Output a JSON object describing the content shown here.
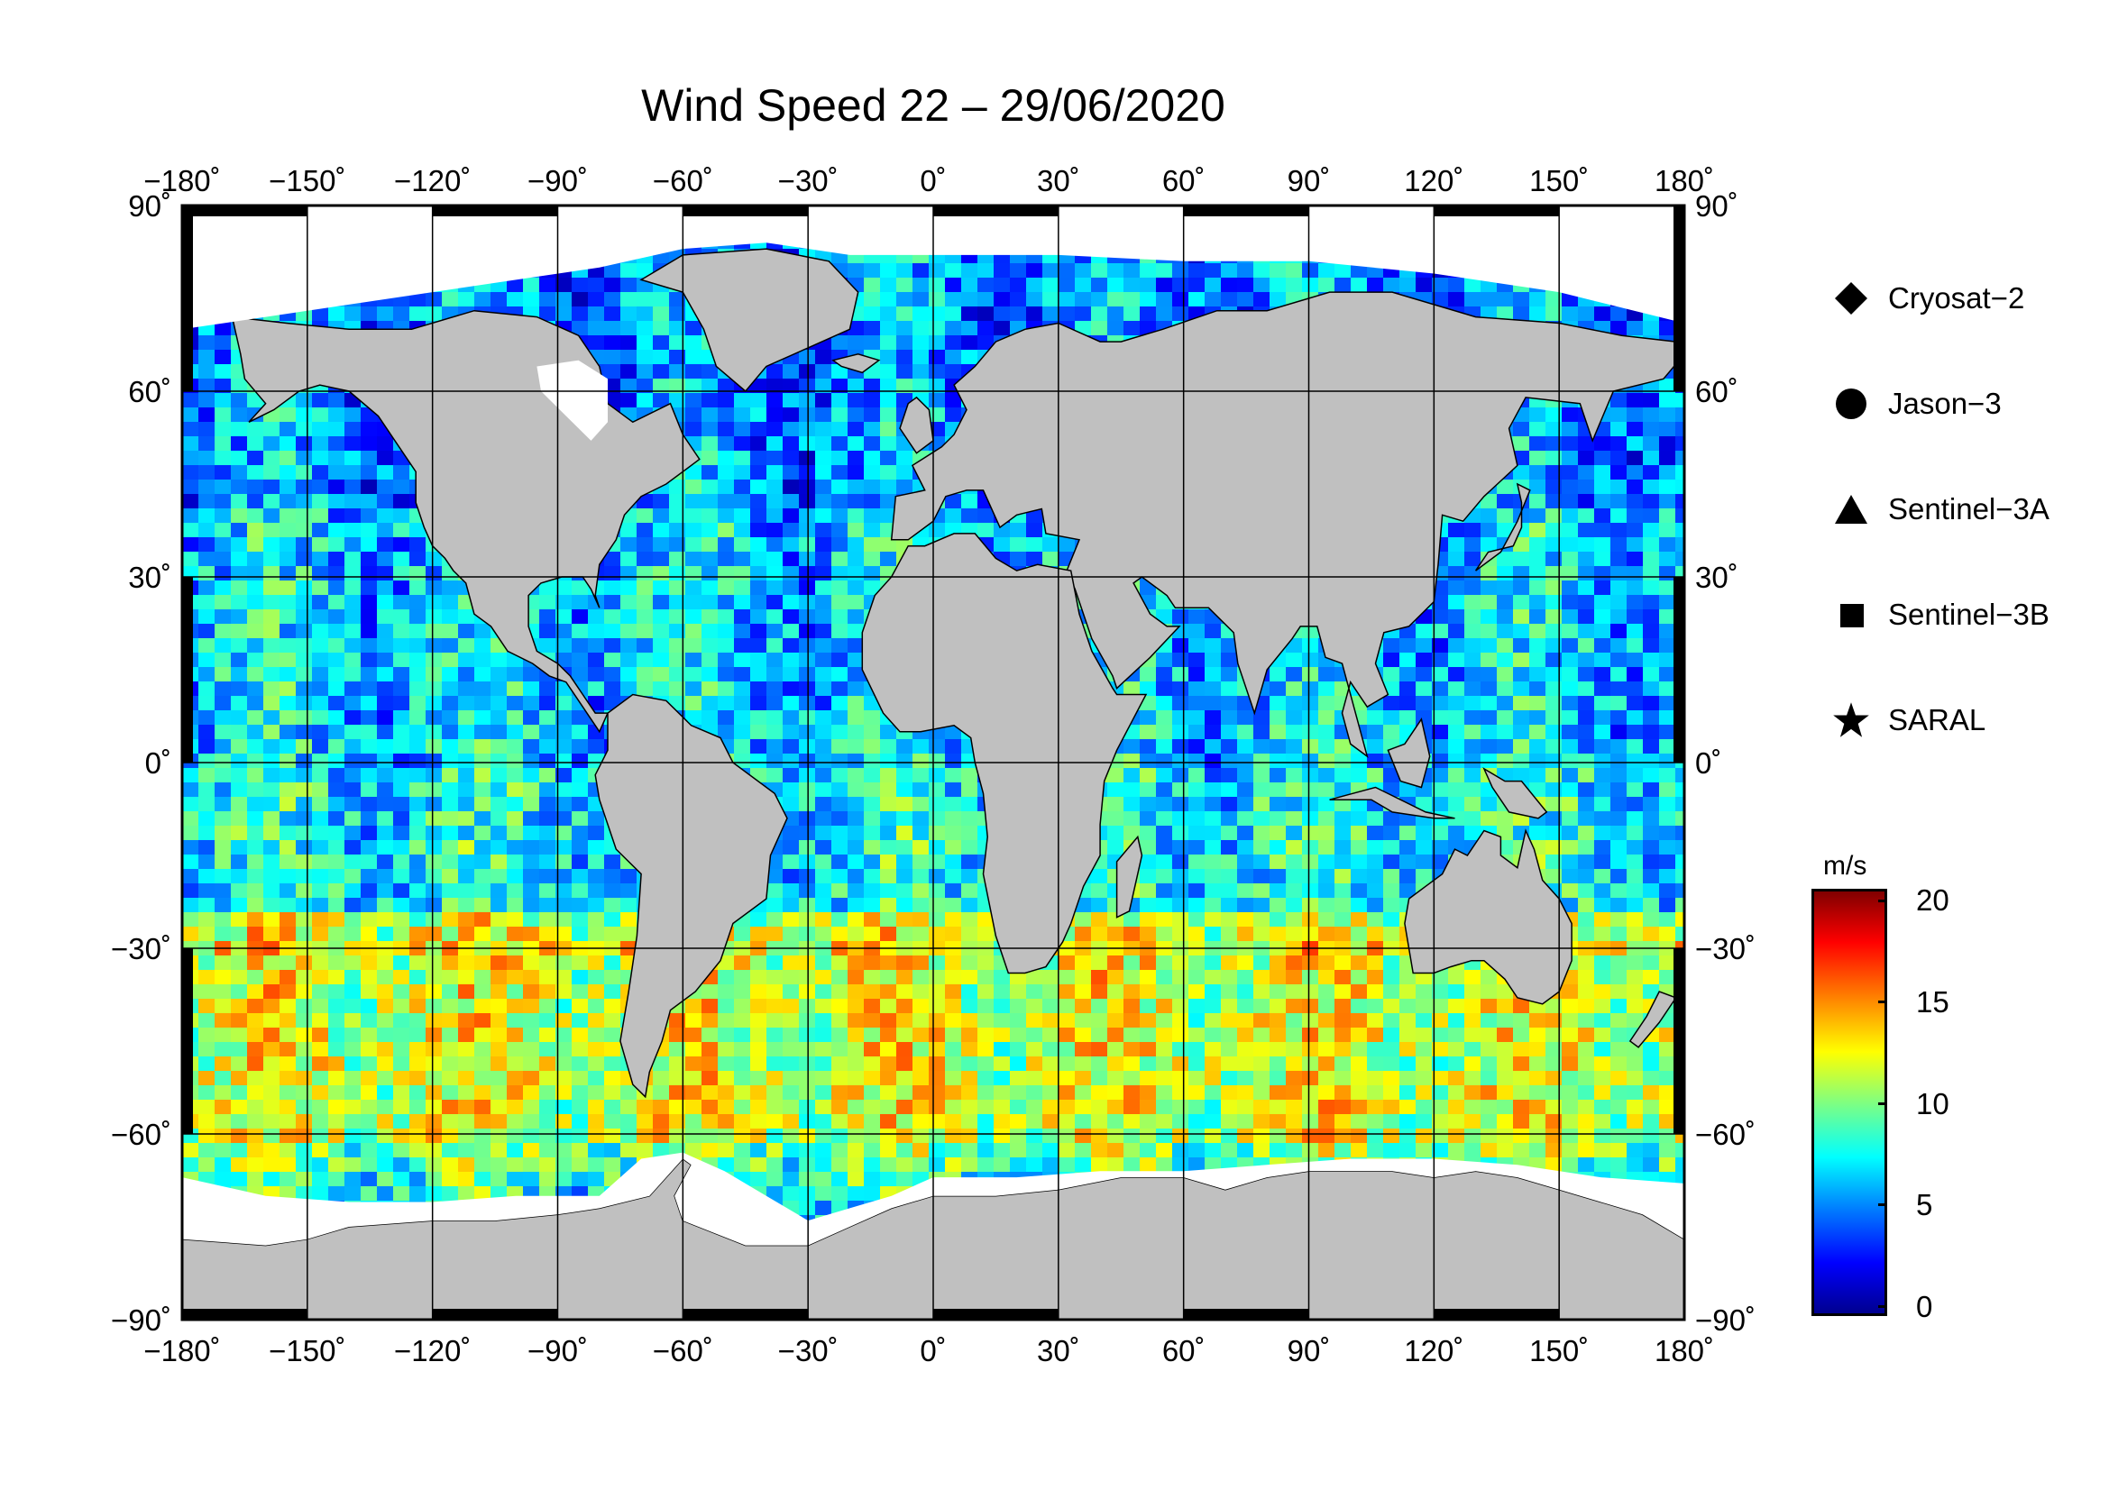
{
  "title": "Wind Speed 22 – 29/06/2020",
  "map": {
    "lon_ticks": [
      "−180˚",
      "−150˚",
      "−120˚",
      "−90˚",
      "−60˚",
      "−30˚",
      "0˚",
      "30˚",
      "60˚",
      "90˚",
      "120˚",
      "150˚",
      "180˚"
    ],
    "lat_ticks": [
      "90˚",
      "60˚",
      "30˚",
      "0˚",
      "−30˚",
      "−60˚",
      "−90˚"
    ],
    "lon_range": [
      -180,
      180
    ],
    "lat_range": [
      -90,
      90
    ],
    "land_color": "#c0c0c0",
    "ice_color": "#ffffff"
  },
  "legend": [
    {
      "label": "Cryosat−2",
      "symbol": "diamond"
    },
    {
      "label": "Jason−3",
      "symbol": "circle"
    },
    {
      "label": "Sentinel−3A",
      "symbol": "triangle"
    },
    {
      "label": "Sentinel−3B",
      "symbol": "square"
    },
    {
      "label": "SARAL",
      "symbol": "star"
    }
  ],
  "colorbar": {
    "unit": "m/s",
    "ticks": [
      "20",
      "15",
      "10",
      "5",
      "0"
    ],
    "range": [
      0,
      20
    ],
    "colormap": "jet"
  }
}
